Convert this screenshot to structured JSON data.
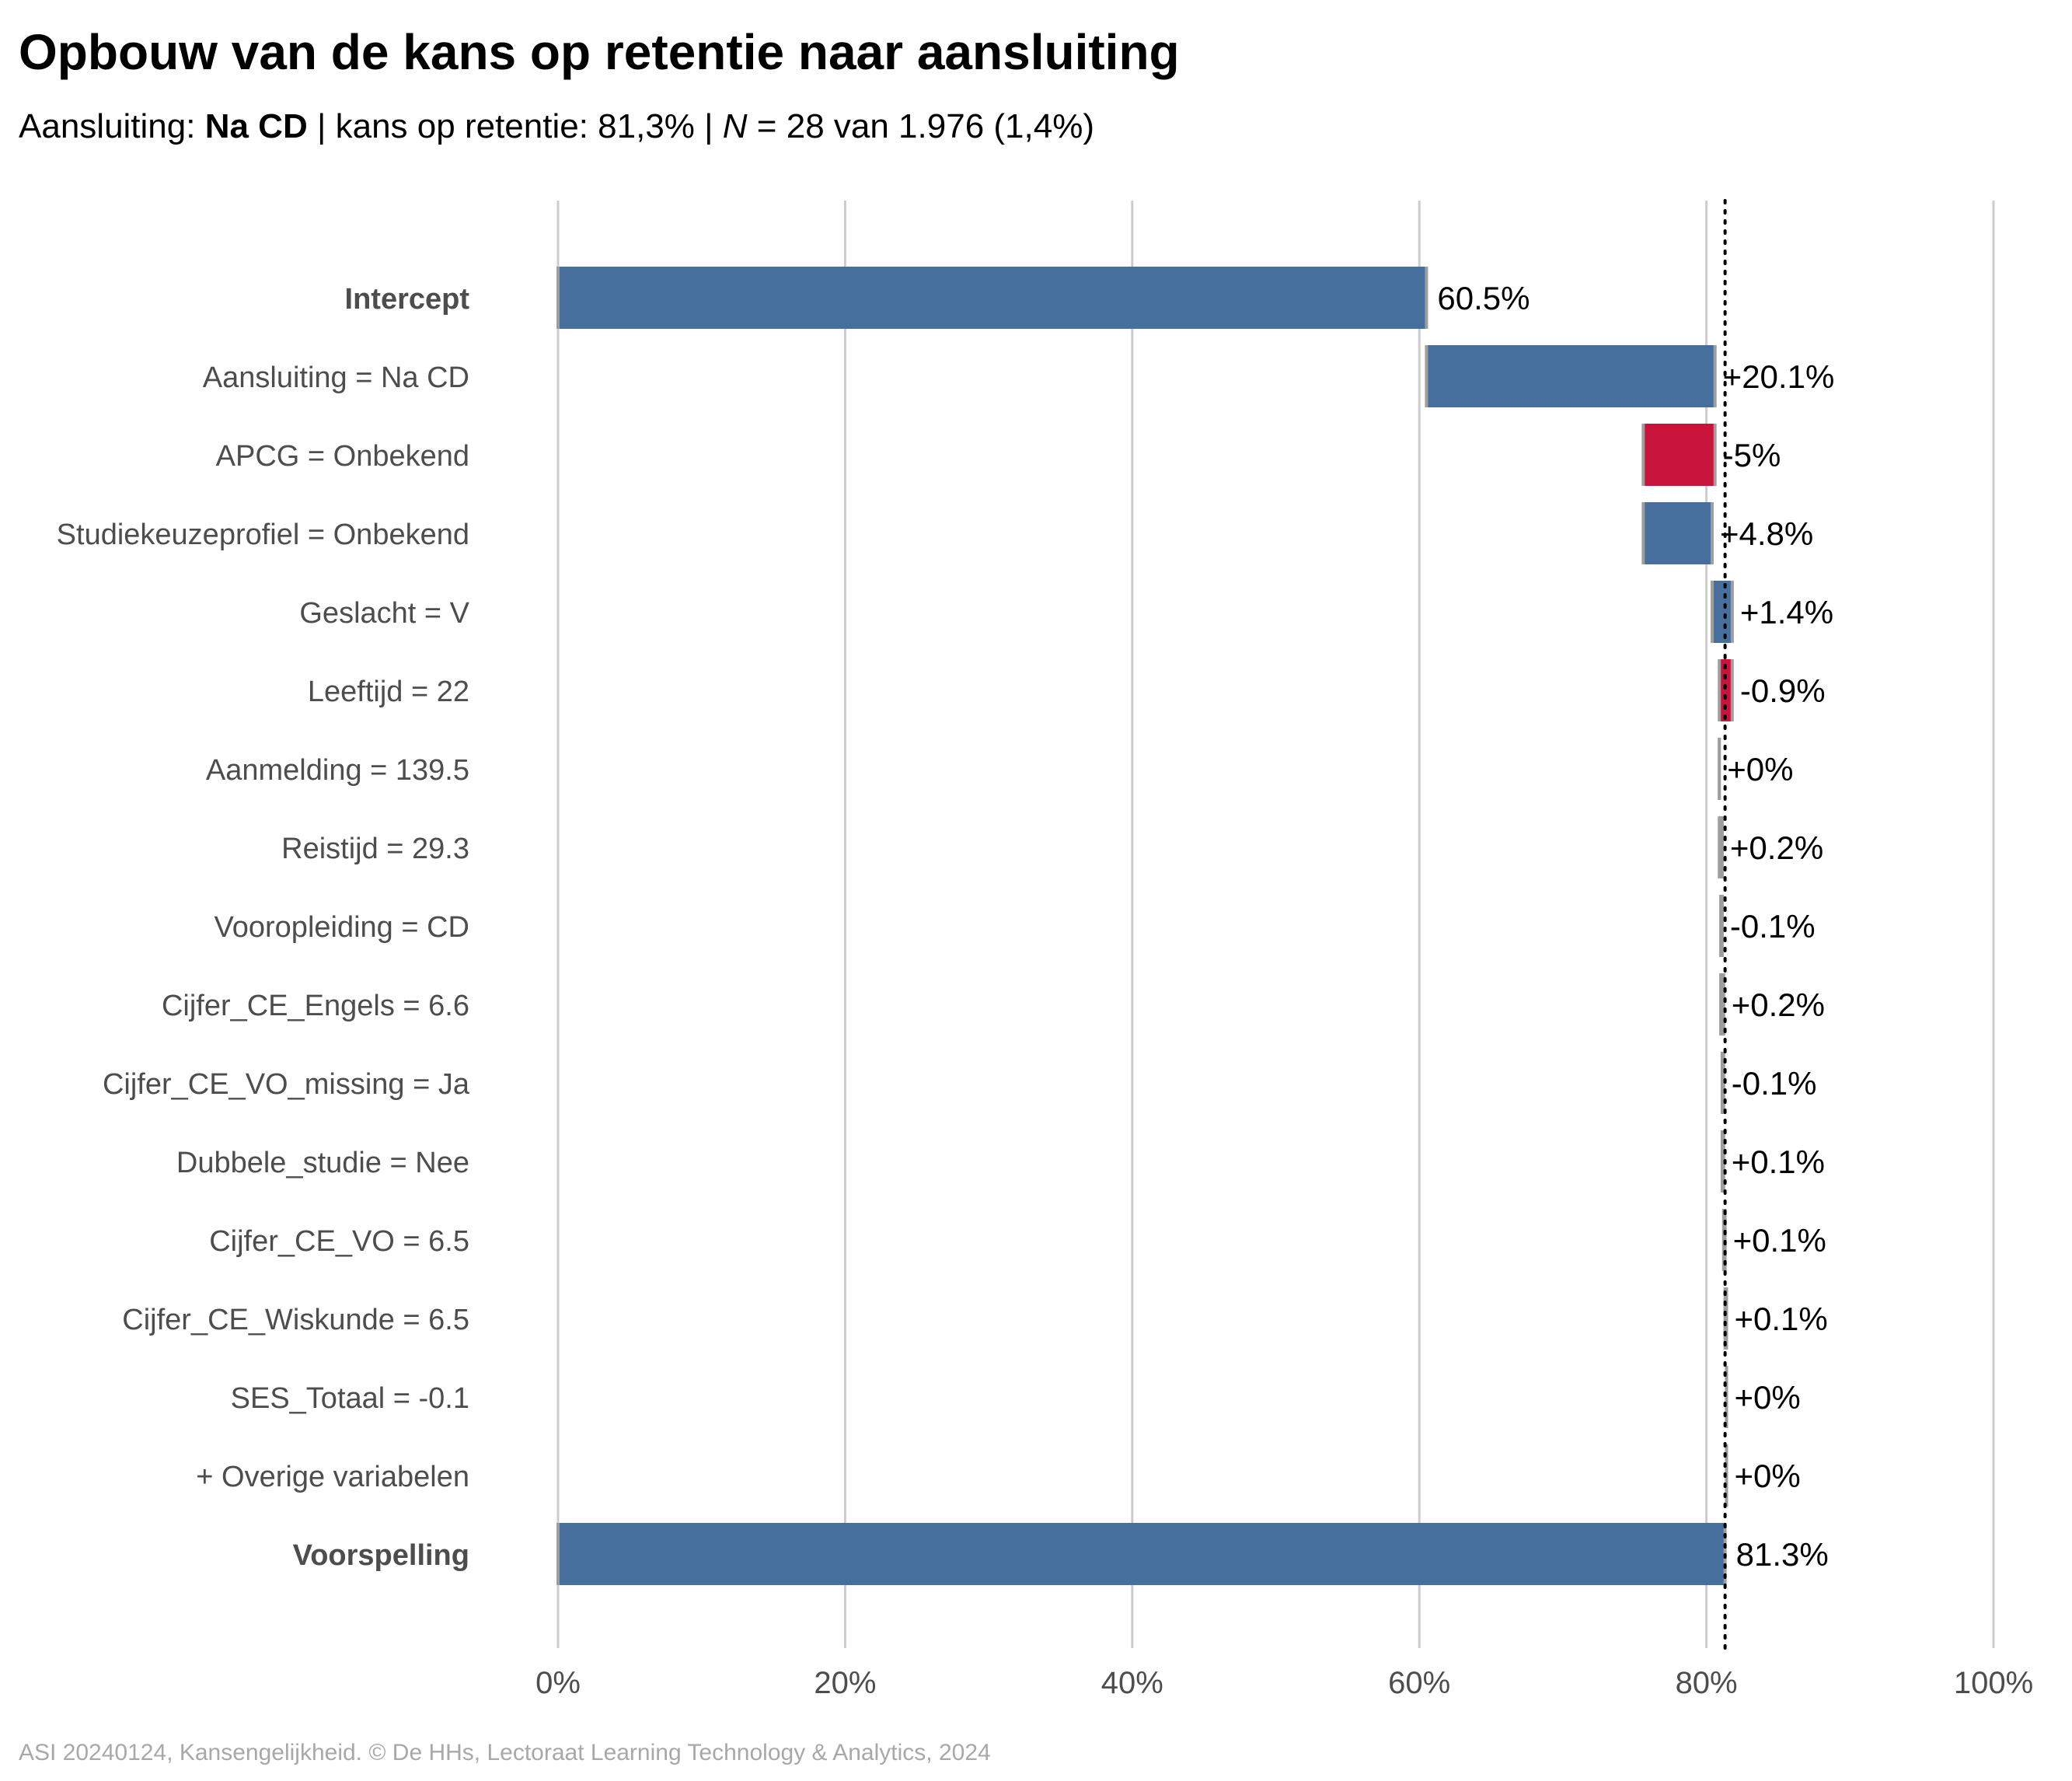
{
  "title": "Opbouw van de kans op retentie naar aansluiting",
  "subtitle": {
    "part1": "Aansluiting: ",
    "bold": "Na CD",
    "part2": " | kans op retentie: 81,3% | ",
    "italic": "N",
    "part3": " = 28 van 1.976 (1,4%)"
  },
  "caption": "ASI 20240124, Kansengelijkheid. © De HHs, Lectoraat Learning Technology & Analytics, 2024",
  "colors": {
    "positive": "#466f9d",
    "negative": "#c8133b",
    "grid": "#cccccc",
    "connector": "#9e9e9e",
    "label_text": "#4d4d4d",
    "value_text": "#000000"
  },
  "chart_data": {
    "type": "bar",
    "subtype": "waterfall",
    "orientation": "horizontal",
    "categories": [
      "Intercept",
      "Aansluiting = Na CD",
      "APCG = Onbekend",
      "Studiekeuzeprofiel = Onbekend",
      "Geslacht = V",
      "Leeftijd = 22",
      "Aanmelding = 139.5",
      "Reistijd = 29.3",
      "Vooropleiding = CD",
      "Cijfer_CE_Engels = 6.6",
      "Cijfer_CE_VO_missing = Ja",
      "Dubbele_studie = Nee",
      "Cijfer_CE_VO = 6.5",
      "Cijfer_CE_Wiskunde = 6.5",
      "SES_Totaal = -0.1",
      "+ Overige variabelen",
      "Voorspelling"
    ],
    "bold_categories": [
      "Intercept",
      "Voorspelling"
    ],
    "values": [
      60.5,
      20.1,
      -5,
      4.8,
      1.4,
      -0.9,
      0,
      0.2,
      -0.1,
      0.2,
      -0.1,
      0.1,
      0.1,
      0.1,
      0,
      0,
      81.3
    ],
    "value_labels": [
      "60.5%",
      "+20.1%",
      "-5%",
      "+4.8%",
      "+1.4%",
      "-0.9%",
      "+0%",
      "+0.2%",
      "-0.1%",
      "+0.2%",
      "-0.1%",
      "+0.1%",
      "+0.1%",
      "+0.1%",
      "+0%",
      "+0%",
      "81.3%"
    ],
    "xlim": [
      0,
      100
    ],
    "xticks": [
      0,
      20,
      40,
      60,
      80,
      100
    ],
    "xtick_labels": [
      "0%",
      "20%",
      "40%",
      "60%",
      "80%",
      "100%"
    ],
    "reference_line": 81.3,
    "grid": "vertical",
    "xlabel": "",
    "ylabel": ""
  }
}
